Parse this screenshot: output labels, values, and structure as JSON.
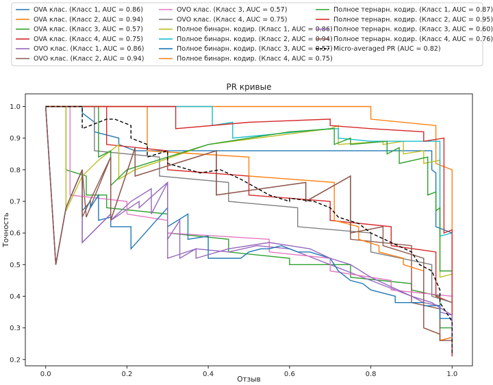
{
  "chart_data": {
    "type": "line",
    "title": "PR кривые",
    "xlabel": "Отзыв",
    "ylabel": "Точность",
    "xlim": [
      -0.05,
      1.05
    ],
    "ylim": [
      0.18,
      1.04
    ],
    "xticks": [
      "0.0",
      "0.2",
      "0.4",
      "0.6",
      "0.8",
      "1.0"
    ],
    "yticks": [
      "0.2",
      "0.3",
      "0.4",
      "0.5",
      "0.6",
      "0.7",
      "0.8",
      "0.9",
      "1.0"
    ],
    "grid": false,
    "legend_position": "top",
    "series": [
      {
        "name": "OVA клас. (Класс 1, AUC = 0.86)",
        "color": "#1f77b4",
        "dash": "",
        "x": [
          0.0,
          0.09,
          0.09,
          0.12,
          0.12,
          0.18,
          0.18,
          0.22,
          0.22,
          0.95,
          0.95,
          0.96,
          0.96,
          1.0,
          1.0
        ],
        "y": [
          1.0,
          1.0,
          0.98,
          0.95,
          0.92,
          0.9,
          0.88,
          0.86,
          0.86,
          0.86,
          0.8,
          0.79,
          0.62,
          0.6,
          0.32
        ]
      },
      {
        "name": "OVA клас. (Класс 2, AUC = 0.94)",
        "color": "#ff7f0e",
        "dash": "",
        "x": [
          0.0,
          0.8,
          0.8,
          0.96,
          0.96,
          1.0,
          1.0
        ],
        "y": [
          1.0,
          1.0,
          0.96,
          0.94,
          0.82,
          0.8,
          0.47
        ]
      },
      {
        "name": "OVA клас. (Класс 3, AUC = 0.57)",
        "color": "#2ca02c",
        "dash": "",
        "x": [
          0.0,
          0.05,
          0.05,
          0.1,
          0.1,
          0.15,
          0.15,
          0.3,
          0.3,
          0.45,
          0.45,
          0.6,
          0.6,
          0.75,
          0.75,
          0.9,
          0.9,
          0.97,
          0.97,
          1.0,
          1.0
        ],
        "y": [
          1.0,
          1.0,
          0.8,
          0.78,
          0.72,
          0.72,
          0.68,
          0.66,
          0.6,
          0.58,
          0.54,
          0.52,
          0.5,
          0.5,
          0.46,
          0.44,
          0.42,
          0.4,
          0.3,
          0.3,
          0.25
        ]
      },
      {
        "name": "OVA клас. (Класс 4, AUC = 0.75)",
        "color": "#d62728",
        "dash": "",
        "x": [
          0.0,
          0.15,
          0.15,
          0.3,
          0.3,
          0.5,
          0.5,
          0.7,
          0.7,
          0.85,
          0.85,
          0.96,
          0.96,
          1.0,
          1.0
        ],
        "y": [
          1.0,
          1.0,
          0.88,
          0.86,
          0.8,
          0.78,
          0.72,
          0.7,
          0.64,
          0.62,
          0.56,
          0.54,
          0.4,
          0.38,
          0.24
        ]
      },
      {
        "name": "OVO клас. (Класс 1, AUC = 0.86)",
        "color": "#9467bd",
        "dash": "",
        "x": [
          0.0,
          0.025,
          0.05,
          0.09,
          0.09,
          0.16,
          0.16,
          0.23,
          0.23,
          0.3,
          0.3,
          0.37,
          0.45,
          0.52,
          0.6,
          0.7,
          0.8,
          0.9,
          0.93,
          0.97,
          0.97,
          1.0,
          1.0
        ],
        "y": [
          1.0,
          0.5,
          0.68,
          0.8,
          0.57,
          0.66,
          0.64,
          0.7,
          0.68,
          0.76,
          0.52,
          0.55,
          0.54,
          0.56,
          0.55,
          0.5,
          0.45,
          0.4,
          0.38,
          0.37,
          0.35,
          0.34,
          0.21
        ]
      },
      {
        "name": "OVO клас. (Класс 2, AUC = 0.94)",
        "color": "#8c564b",
        "dash": "",
        "x": [
          0.0,
          0.025,
          0.05,
          0.09,
          0.1,
          0.16,
          0.16,
          0.22,
          0.22,
          0.42,
          0.42,
          0.64,
          0.64,
          0.75,
          0.75,
          0.9,
          0.9,
          0.97,
          0.97,
          1.0,
          1.0
        ],
        "y": [
          1.0,
          0.5,
          0.68,
          0.8,
          0.65,
          0.84,
          0.64,
          0.87,
          0.78,
          0.86,
          0.72,
          0.76,
          0.7,
          0.78,
          0.58,
          0.56,
          0.38,
          0.36,
          0.26,
          0.27,
          0.26
        ]
      },
      {
        "name": "OVO клас. (Класс 3, AUC = 0.57)",
        "color": "#e377c2",
        "dash": "",
        "x": [
          0.0,
          0.06,
          0.06,
          0.2,
          0.2,
          0.3,
          0.3,
          0.55,
          0.55,
          0.7,
          0.7,
          0.85,
          0.85,
          1.0,
          1.0
        ],
        "y": [
          1.0,
          1.0,
          0.72,
          0.7,
          0.66,
          0.64,
          0.6,
          0.58,
          0.54,
          0.52,
          0.48,
          0.45,
          0.42,
          0.4,
          0.3
        ]
      },
      {
        "name": "OVO клас. (Класс 4, AUC = 0.75)",
        "color": "#7f7f7f",
        "dash": "",
        "x": [
          0.0,
          0.12,
          0.12,
          0.28,
          0.28,
          0.45,
          0.45,
          0.62,
          0.62,
          0.8,
          0.8,
          0.95,
          0.95,
          1.0,
          1.0
        ],
        "y": [
          1.0,
          1.0,
          0.86,
          0.84,
          0.78,
          0.76,
          0.7,
          0.68,
          0.62,
          0.6,
          0.54,
          0.5,
          0.4,
          0.38,
          0.28
        ]
      },
      {
        "name": "Полное бинарн. кодир. (Класс 1, AUC = 0.86)",
        "color": "#bcbd22",
        "dash": "",
        "x": [
          0.0,
          0.05,
          0.05,
          0.09,
          0.13,
          0.18,
          0.18,
          0.22,
          0.4,
          0.7,
          0.72,
          0.72,
          0.83,
          0.83,
          0.88,
          0.88,
          0.93,
          0.93,
          0.97,
          0.97,
          1.0,
          1.0
        ],
        "y": [
          1.0,
          1.0,
          0.67,
          0.78,
          0.83,
          0.88,
          0.77,
          0.8,
          0.88,
          0.93,
          0.94,
          0.88,
          0.89,
          0.88,
          0.89,
          0.85,
          0.86,
          0.82,
          0.83,
          0.46,
          0.47,
          0.3
        ]
      },
      {
        "name": "Полное бинарн. кодир. (Класс 2, AUC = 0.94)",
        "color": "#17becf",
        "dash": "",
        "x": [
          0.0,
          0.38,
          0.41,
          0.41,
          0.46,
          0.46,
          0.7,
          0.72,
          0.72,
          0.8,
          0.9,
          0.97,
          0.97,
          1.0,
          1.0
        ],
        "y": [
          1.0,
          1.0,
          1.0,
          0.94,
          0.95,
          0.9,
          0.93,
          0.93,
          0.9,
          0.89,
          0.89,
          0.89,
          0.59,
          0.6,
          0.3
        ]
      },
      {
        "name": "Полное бинарн. кодир. (Класс 3, AUC = 0.57)",
        "color": "#1f77b4",
        "dash": "",
        "x": [
          0.0,
          0.025,
          0.05,
          0.09,
          0.09,
          0.11,
          0.11,
          0.13,
          0.13,
          0.16,
          0.16,
          0.21,
          0.21,
          0.3,
          0.3,
          0.35,
          0.35,
          0.4,
          0.4,
          0.48,
          0.5,
          0.53,
          0.55,
          0.58,
          0.62,
          0.65,
          0.7,
          0.72,
          0.75,
          0.78,
          0.8,
          0.86,
          0.86,
          0.9,
          0.93,
          0.93,
          0.97,
          0.97,
          1.0,
          1.0
        ],
        "y": [
          1.0,
          0.5,
          0.68,
          0.8,
          0.67,
          0.7,
          0.68,
          0.72,
          0.64,
          0.65,
          0.62,
          0.62,
          0.55,
          0.68,
          0.62,
          0.66,
          0.58,
          0.59,
          0.52,
          0.52,
          0.54,
          0.55,
          0.55,
          0.56,
          0.54,
          0.54,
          0.52,
          0.48,
          0.45,
          0.44,
          0.42,
          0.4,
          0.38,
          0.38,
          0.38,
          0.37,
          0.37,
          0.33,
          0.33,
          0.3
        ]
      },
      {
        "name": "Полное бинарн. кодир. (Класс 4, AUC = 0.75)",
        "color": "#ff7f0e",
        "dash": "",
        "x": [
          0.0,
          0.25,
          0.25,
          0.5,
          0.5,
          0.71,
          0.71,
          0.77,
          0.77,
          0.82,
          0.82,
          0.88,
          0.88,
          0.93,
          0.93,
          0.97,
          0.97,
          1.0,
          1.0
        ],
        "y": [
          1.0,
          1.0,
          0.86,
          0.84,
          0.78,
          0.76,
          0.64,
          0.62,
          0.58,
          0.56,
          0.54,
          0.52,
          0.5,
          0.48,
          0.3,
          0.28,
          0.26,
          0.27,
          0.26
        ]
      },
      {
        "name": "Полное тернарн. кодир. (Класс 1, AUC = 0.87)",
        "color": "#2ca02c",
        "dash": "",
        "x": [
          0.0,
          0.13,
          0.13,
          0.16,
          0.16,
          0.2,
          0.4,
          0.6,
          0.71,
          0.71,
          0.75,
          0.75,
          0.84,
          0.84,
          0.87,
          0.87,
          0.94,
          0.94,
          0.96,
          0.96,
          0.97,
          0.97,
          1.0,
          1.0
        ],
        "y": [
          1.0,
          1.0,
          0.84,
          0.86,
          0.75,
          0.8,
          0.88,
          0.92,
          0.93,
          0.88,
          0.9,
          0.88,
          0.89,
          0.85,
          0.87,
          0.82,
          0.84,
          0.72,
          0.73,
          0.67,
          0.68,
          0.48,
          0.48,
          0.25
        ]
      },
      {
        "name": "Полное тернарн. кодир. (Класс 2, AUC = 0.95)",
        "color": "#d62728",
        "dash": "",
        "x": [
          0.0,
          0.32,
          0.32,
          0.5,
          0.7,
          0.7,
          0.8,
          0.93,
          0.93,
          0.98,
          0.98,
          1.0,
          1.0
        ],
        "y": [
          1.0,
          1.0,
          0.93,
          0.95,
          0.96,
          0.94,
          0.93,
          0.92,
          0.89,
          0.9,
          0.6,
          0.61,
          0.21
        ]
      },
      {
        "name": "Полное тернарн. кодир. (Класс 3, AUC = 0.60)",
        "color": "#9467bd",
        "dash": "",
        "x": [
          0.0,
          0.025,
          0.05,
          0.09,
          0.09,
          0.16,
          0.16,
          0.21,
          0.26,
          0.26,
          0.3,
          0.3,
          0.33,
          0.33,
          0.37,
          0.37,
          0.45,
          0.55,
          0.6,
          0.65,
          0.7,
          0.75,
          0.8,
          0.85,
          0.9,
          0.95,
          1.0,
          1.0
        ],
        "y": [
          1.0,
          0.5,
          0.68,
          0.8,
          0.57,
          0.66,
          0.64,
          0.7,
          0.74,
          0.66,
          0.76,
          0.58,
          0.64,
          0.52,
          0.55,
          0.52,
          0.55,
          0.57,
          0.56,
          0.55,
          0.52,
          0.5,
          0.46,
          0.43,
          0.4,
          0.38,
          0.34,
          0.24
        ]
      },
      {
        "name": "Полное тернарн. кодир. (Класс 4, AUC = 0.76)",
        "color": "#8c564b",
        "dash": "",
        "x": [
          0.0,
          0.025,
          0.05,
          0.09,
          0.09,
          0.16,
          0.16,
          0.22,
          0.22,
          0.42,
          0.42,
          0.64,
          0.64,
          0.75,
          0.75,
          0.83,
          0.83,
          0.93,
          0.93,
          0.97,
          0.97,
          1.0,
          1.0
        ],
        "y": [
          1.0,
          0.5,
          0.68,
          0.8,
          0.65,
          0.84,
          0.64,
          0.87,
          0.78,
          0.86,
          0.72,
          0.76,
          0.7,
          0.78,
          0.6,
          0.62,
          0.56,
          0.52,
          0.3,
          0.28,
          0.26,
          0.26,
          0.25
        ]
      },
      {
        "name": "Micro-averaged PR (AUC = 0.82)",
        "color": "#000000",
        "dash": "5,3",
        "x": [
          0.0,
          0.09,
          0.09,
          0.15,
          0.17,
          0.21,
          0.21,
          0.25,
          0.25,
          0.3,
          0.3,
          0.38,
          0.43,
          0.48,
          0.55,
          0.6,
          0.6,
          0.66,
          0.7,
          0.72,
          0.77,
          0.8,
          0.85,
          0.9,
          0.92,
          0.95,
          0.97,
          0.97,
          1.0,
          1.0
        ],
        "y": [
          1.0,
          1.0,
          0.93,
          0.96,
          0.96,
          0.94,
          0.9,
          0.88,
          0.84,
          0.86,
          0.82,
          0.79,
          0.8,
          0.77,
          0.72,
          0.7,
          0.71,
          0.7,
          0.68,
          0.65,
          0.63,
          0.6,
          0.57,
          0.54,
          0.5,
          0.48,
          0.42,
          0.38,
          0.32,
          0.22
        ]
      }
    ]
  }
}
